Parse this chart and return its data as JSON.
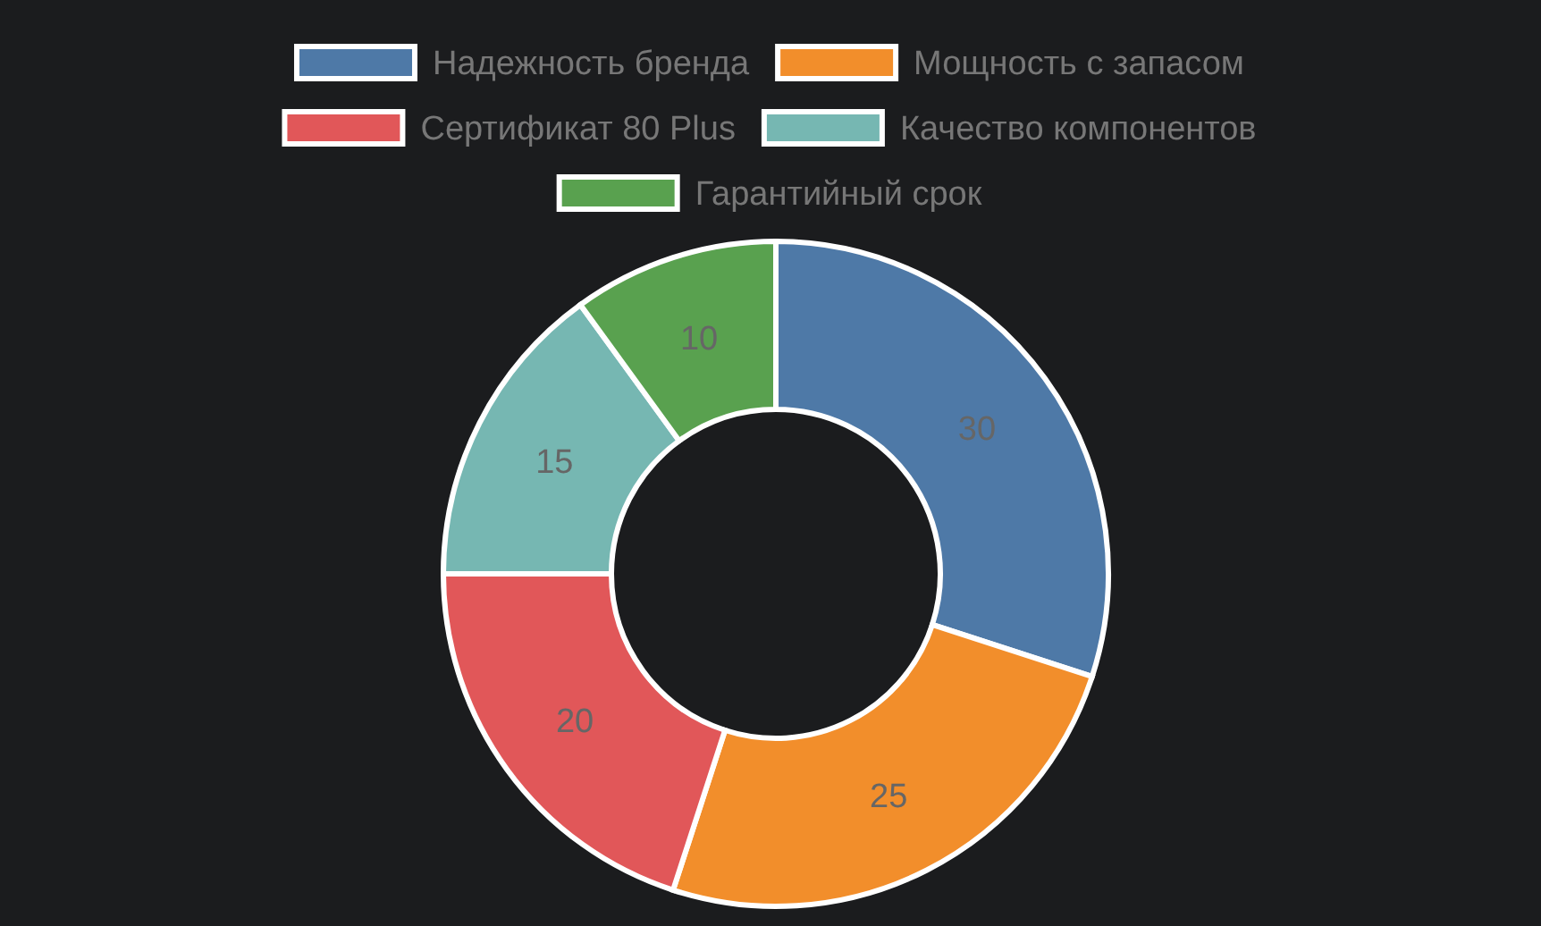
{
  "chart_data": {
    "type": "donut",
    "categories": [
      "Надежность бренда",
      "Мощность с запасом",
      "Сертификат 80 Plus",
      "Качество компонентов",
      "Гарантийный срок"
    ],
    "values": [
      30,
      25,
      20,
      15,
      10
    ],
    "colors": [
      "#4e79a7",
      "#f28e2b",
      "#e15759",
      "#76b7b2",
      "#59a14f"
    ],
    "data_labels": true,
    "legend": "top"
  }
}
